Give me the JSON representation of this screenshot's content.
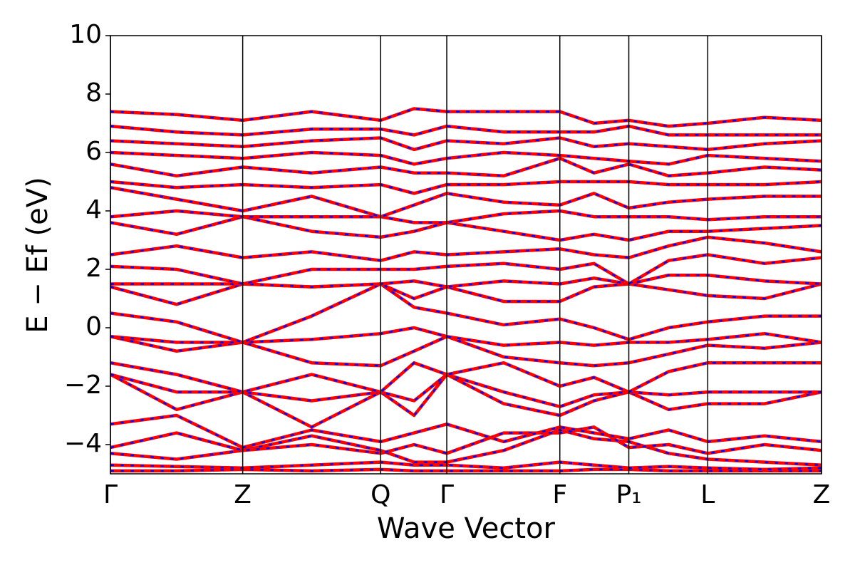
{
  "chart_data": {
    "type": "line",
    "x_label": "Wave Vector",
    "y_label": "E − Ef (eV)",
    "x": [
      0,
      0.093,
      0.186,
      0.283,
      0.38,
      0.427,
      0.473,
      0.553,
      0.632,
      0.68,
      0.729,
      0.785,
      0.84,
      0.92,
      1.0
    ],
    "xlim": [
      0,
      1.0
    ],
    "xticks": [
      {
        "value": 0,
        "label": "Γ"
      },
      {
        "value": 0.186,
        "label": "Z"
      },
      {
        "value": 0.38,
        "label": "Q"
      },
      {
        "value": 0.473,
        "label": "Γ"
      },
      {
        "value": 0.632,
        "label": "F"
      },
      {
        "value": 0.729,
        "label": "P₁"
      },
      {
        "value": 0.84,
        "label": "L"
      },
      {
        "value": 1.0,
        "label": "Z"
      }
    ],
    "ylim": [
      -5,
      10
    ],
    "yticks": [
      {
        "value": -4,
        "label": "−4"
      },
      {
        "value": -2,
        "label": "−2"
      },
      0,
      2,
      4,
      6,
      8,
      10
    ],
    "grid": "x",
    "color": "#ff0000",
    "dash_color": "#0000ff",
    "series": [
      {
        "values": [
          -4.9,
          -4.9,
          -4.85,
          -4.9,
          -4.85,
          -4.9,
          -4.9,
          -4.9,
          -4.9,
          -4.85,
          -4.85,
          -4.9,
          -4.9,
          -4.9,
          -4.9
        ]
      },
      {
        "values": [
          -4.7,
          -4.75,
          -4.8,
          -4.7,
          -4.6,
          -4.7,
          -4.7,
          -4.8,
          -4.6,
          -4.7,
          -4.8,
          -4.75,
          -4.8,
          -4.85,
          -4.8
        ]
      },
      {
        "values": [
          -4.3,
          -4.5,
          -4.2,
          -3.7,
          -4.2,
          -4.6,
          -4.6,
          -4.2,
          -3.5,
          -3.8,
          -3.9,
          -4.3,
          -4.5,
          -4.6,
          -4.7
        ]
      },
      {
        "values": [
          -4.1,
          -3.6,
          -4.2,
          -4.0,
          -4.3,
          -4.0,
          -4.3,
          -3.6,
          -3.6,
          -3.4,
          -4.1,
          -4.0,
          -4.3,
          -4.0,
          -4.2
        ]
      },
      {
        "values": [
          -3.3,
          -3.0,
          -4.1,
          -3.5,
          -3.9,
          -3.6,
          -3.3,
          -3.9,
          -3.4,
          -3.6,
          -3.8,
          -3.5,
          -3.9,
          -3.7,
          -3.9
        ]
      },
      {
        "values": [
          -1.6,
          -2.8,
          -2.2,
          -3.4,
          -2.2,
          -3.0,
          -1.6,
          -2.6,
          -3.0,
          -2.5,
          -2.2,
          -2.8,
          -2.6,
          -2.6,
          -2.2
        ]
      },
      {
        "values": [
          -1.6,
          -2.2,
          -2.2,
          -2.5,
          -2.2,
          -2.5,
          -1.6,
          -2.2,
          -2.7,
          -2.3,
          -2.2,
          -2.3,
          -2.2,
          -2.2,
          -2.2
        ]
      },
      {
        "values": [
          -1.2,
          -1.6,
          -2.2,
          -1.6,
          -2.2,
          -1.2,
          -1.6,
          -1.2,
          -2.0,
          -1.7,
          -2.2,
          -1.5,
          -1.2,
          -1.2,
          -1.2
        ]
      },
      {
        "values": [
          -0.3,
          -0.8,
          -0.5,
          -1.2,
          -1.3,
          -0.8,
          -0.3,
          -1.0,
          -1.2,
          -1.3,
          -1.2,
          -0.9,
          -0.6,
          -0.7,
          -0.5
        ]
      },
      {
        "values": [
          -0.3,
          -0.5,
          -0.5,
          -0.4,
          -0.2,
          0.0,
          -0.3,
          -0.6,
          -0.5,
          -0.6,
          -0.5,
          -0.5,
          -0.4,
          -0.2,
          -0.5
        ]
      },
      {
        "values": [
          0.5,
          0.2,
          -0.5,
          0.4,
          1.5,
          0.7,
          0.5,
          0.1,
          0.3,
          0.0,
          -0.4,
          0.0,
          0.2,
          0.4,
          0.4
        ]
      },
      {
        "values": [
          1.4,
          0.8,
          1.5,
          1.4,
          1.5,
          1.0,
          1.4,
          0.9,
          0.9,
          1.4,
          1.5,
          1.3,
          1.1,
          1.0,
          1.5
        ]
      },
      {
        "values": [
          1.5,
          1.5,
          1.5,
          1.4,
          1.5,
          1.6,
          1.4,
          1.6,
          1.5,
          1.7,
          1.5,
          1.8,
          1.8,
          1.6,
          1.5
        ]
      },
      {
        "values": [
          2.1,
          2.0,
          1.5,
          2.0,
          2.0,
          2.0,
          2.1,
          2.2,
          2.0,
          2.2,
          1.5,
          2.3,
          2.5,
          2.2,
          2.4
        ]
      },
      {
        "values": [
          2.5,
          2.8,
          2.4,
          2.6,
          2.3,
          2.6,
          2.5,
          2.6,
          2.7,
          2.5,
          2.4,
          2.8,
          3.1,
          2.9,
          2.6
        ]
      },
      {
        "values": [
          3.6,
          3.2,
          3.8,
          3.3,
          3.1,
          3.3,
          3.6,
          3.3,
          3.0,
          3.2,
          3.0,
          3.3,
          3.3,
          3.4,
          3.5
        ]
      },
      {
        "values": [
          3.8,
          4.0,
          3.8,
          3.8,
          3.8,
          3.6,
          3.6,
          3.9,
          4.0,
          3.8,
          3.8,
          3.8,
          3.7,
          3.8,
          3.8
        ]
      },
      {
        "values": [
          4.8,
          4.4,
          4.0,
          4.5,
          3.8,
          4.2,
          4.6,
          4.3,
          4.2,
          4.6,
          4.1,
          4.3,
          4.4,
          4.5,
          4.5
        ]
      },
      {
        "values": [
          5.0,
          4.8,
          4.9,
          4.8,
          4.9,
          4.6,
          4.9,
          4.9,
          5.0,
          5.0,
          5.0,
          4.9,
          4.9,
          4.9,
          5.0
        ]
      },
      {
        "values": [
          5.6,
          5.2,
          5.5,
          5.3,
          5.5,
          5.3,
          5.3,
          5.2,
          5.8,
          5.3,
          5.6,
          5.2,
          5.3,
          5.5,
          5.4
        ]
      },
      {
        "values": [
          6.0,
          5.9,
          5.8,
          6.0,
          5.9,
          5.6,
          5.8,
          6.0,
          5.9,
          5.8,
          5.7,
          5.6,
          5.9,
          5.8,
          5.7
        ]
      },
      {
        "values": [
          6.4,
          6.3,
          6.2,
          6.4,
          6.5,
          6.1,
          6.4,
          6.3,
          6.5,
          6.2,
          6.3,
          6.2,
          6.1,
          6.3,
          6.4
        ]
      },
      {
        "values": [
          6.9,
          6.7,
          6.6,
          6.8,
          6.8,
          6.6,
          6.9,
          6.7,
          6.7,
          6.7,
          6.9,
          6.6,
          6.6,
          6.6,
          6.6
        ]
      },
      {
        "values": [
          7.4,
          7.3,
          7.1,
          7.4,
          7.1,
          7.5,
          7.4,
          7.4,
          7.4,
          7.0,
          7.1,
          6.9,
          7.0,
          7.2,
          7.1
        ]
      }
    ]
  }
}
